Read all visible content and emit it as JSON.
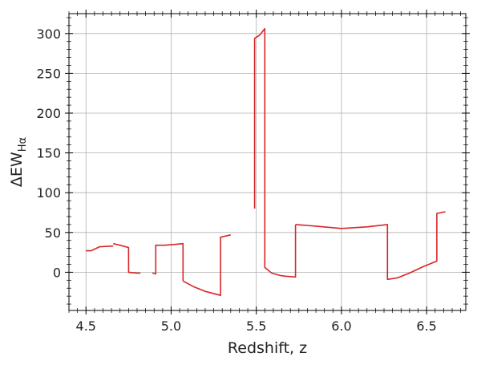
{
  "chart_data": {
    "type": "line",
    "xlabel": "Redshift, z",
    "ylabel_main": "ΔEW",
    "ylabel_sub": "Hα",
    "xlim": [
      4.4,
      6.73
    ],
    "ylim": [
      -48,
      325
    ],
    "xticks": [
      4.5,
      5.0,
      5.5,
      6.0,
      6.5
    ],
    "xtick_labels": [
      "4.5",
      "5.0",
      "5.5",
      "6.0",
      "6.5"
    ],
    "yticks": [
      0,
      50,
      100,
      150,
      200,
      250,
      300
    ],
    "ytick_labels": [
      "0",
      "50",
      "100",
      "150",
      "200",
      "250",
      "300"
    ],
    "grid": true,
    "series_color": "#d62728",
    "segments": [
      [
        [
          4.5,
          27
        ],
        [
          4.53,
          27
        ],
        [
          4.56,
          30
        ],
        [
          4.58,
          32
        ],
        [
          4.66,
          33
        ]
      ],
      [
        [
          4.66,
          36
        ],
        [
          4.7,
          34
        ],
        [
          4.75,
          31
        ],
        [
          4.75,
          0
        ],
        [
          4.8,
          -1
        ],
        [
          4.82,
          -1
        ]
      ],
      [
        [
          4.89,
          -1
        ],
        [
          4.91,
          -2
        ],
        [
          4.91,
          34
        ],
        [
          4.96,
          34
        ],
        [
          5.02,
          35
        ],
        [
          5.07,
          36
        ],
        [
          5.07,
          -11
        ]
      ],
      [
        [
          5.07,
          -11
        ],
        [
          5.13,
          -18
        ],
        [
          5.2,
          -24
        ],
        [
          5.29,
          -29
        ],
        [
          5.29,
          44
        ],
        [
          5.35,
          47
        ]
      ],
      [
        [
          5.49,
          80
        ],
        [
          5.49,
          294
        ],
        [
          5.52,
          298
        ],
        [
          5.55,
          306
        ],
        [
          5.55,
          6
        ],
        [
          5.59,
          -1
        ],
        [
          5.64,
          -4
        ],
        [
          5.67,
          -5
        ],
        [
          5.73,
          -6
        ],
        [
          5.73,
          60
        ]
      ],
      [
        [
          5.73,
          60
        ],
        [
          5.85,
          58
        ],
        [
          6.0,
          55
        ],
        [
          6.15,
          57
        ],
        [
          6.27,
          60
        ],
        [
          6.27,
          -9
        ],
        [
          6.33,
          -7
        ],
        [
          6.4,
          -1
        ],
        [
          6.48,
          7
        ],
        [
          6.56,
          14
        ],
        [
          6.56,
          74
        ],
        [
          6.61,
          76
        ]
      ]
    ]
  }
}
